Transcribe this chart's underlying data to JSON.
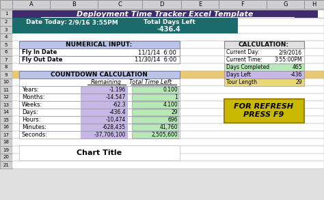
{
  "title": "Deployment Time Tracker Excel Template",
  "title_bg": "#3d2b6b",
  "title_color": "white",
  "row2_bg": "#1a6b6b",
  "date_today_label": "Date Today:",
  "date_today_value": "2/9/16 3:55PM",
  "total_days_label": "Total Days Left",
  "total_days_value": "-436.4",
  "col_headers": [
    "A",
    "B",
    "C",
    "D",
    "E",
    "F",
    "G",
    "H"
  ],
  "row_numbers": [
    "1",
    "2",
    "3",
    "4",
    "5",
    "6",
    "7",
    "8",
    "9",
    "10",
    "11",
    "12",
    "13",
    "14",
    "15",
    "16",
    "17",
    "18",
    "19",
    "20",
    "21"
  ],
  "numerical_input_header": "NUMERICAL INPUT:",
  "numerical_input_bg": "#b8c4e8",
  "fly_in_date": "Fly In Date",
  "fly_in_value": "11/1/14  6:00",
  "fly_out_date": "Fly Out Date",
  "fly_out_value": "11/30/14  6:00",
  "countdown_header": "COUNTDOWN CALCULATION",
  "countdown_bg": "#b8c4e8",
  "col_remaining": "Remaining",
  "col_total_time": "Total Time Left",
  "rows_data": [
    [
      "Years:",
      "-1.196",
      "0.100"
    ],
    [
      "Months:",
      "-14.547",
      "1"
    ],
    [
      "Weeks:",
      "-62.3",
      "4.100"
    ],
    [
      "Days:",
      "-436.4",
      "29"
    ],
    [
      "Hours:",
      "-10,474",
      "696"
    ],
    [
      "Minutes:",
      "-628,435",
      "41,760"
    ],
    [
      "Seconds:",
      "-37,706,100",
      "2,505,600"
    ]
  ],
  "remaining_bg": "#c8b8e8",
  "total_time_bg": "#b8e8b8",
  "calc_header": "CALCULATION:",
  "calc_header_bg": "#e0e0e0",
  "calc_rows": [
    [
      "Current Day:",
      "2/9/2016",
      "white"
    ],
    [
      "Current Time:",
      "3:55:00PM",
      "white"
    ],
    [
      "Days Completed",
      "465",
      "#b8e8b8"
    ],
    [
      "Days Left",
      "-436",
      "#c8b8e8"
    ],
    [
      "Tour Length",
      "29",
      "#e8d878"
    ]
  ],
  "refresh_text": "FOR REFRESH\nPRESS F9",
  "refresh_bg": "#c8b800",
  "refresh_text_color": "black",
  "chart_title": "Chart Title",
  "sheet_bg": "#e0e0e0",
  "cell_bg": "white",
  "grid_color": "#b0b0b0",
  "header_col_bg": "#d0d0d0",
  "row_num_bg": "#d0d0d0",
  "row9_highlight": "#e8c870"
}
